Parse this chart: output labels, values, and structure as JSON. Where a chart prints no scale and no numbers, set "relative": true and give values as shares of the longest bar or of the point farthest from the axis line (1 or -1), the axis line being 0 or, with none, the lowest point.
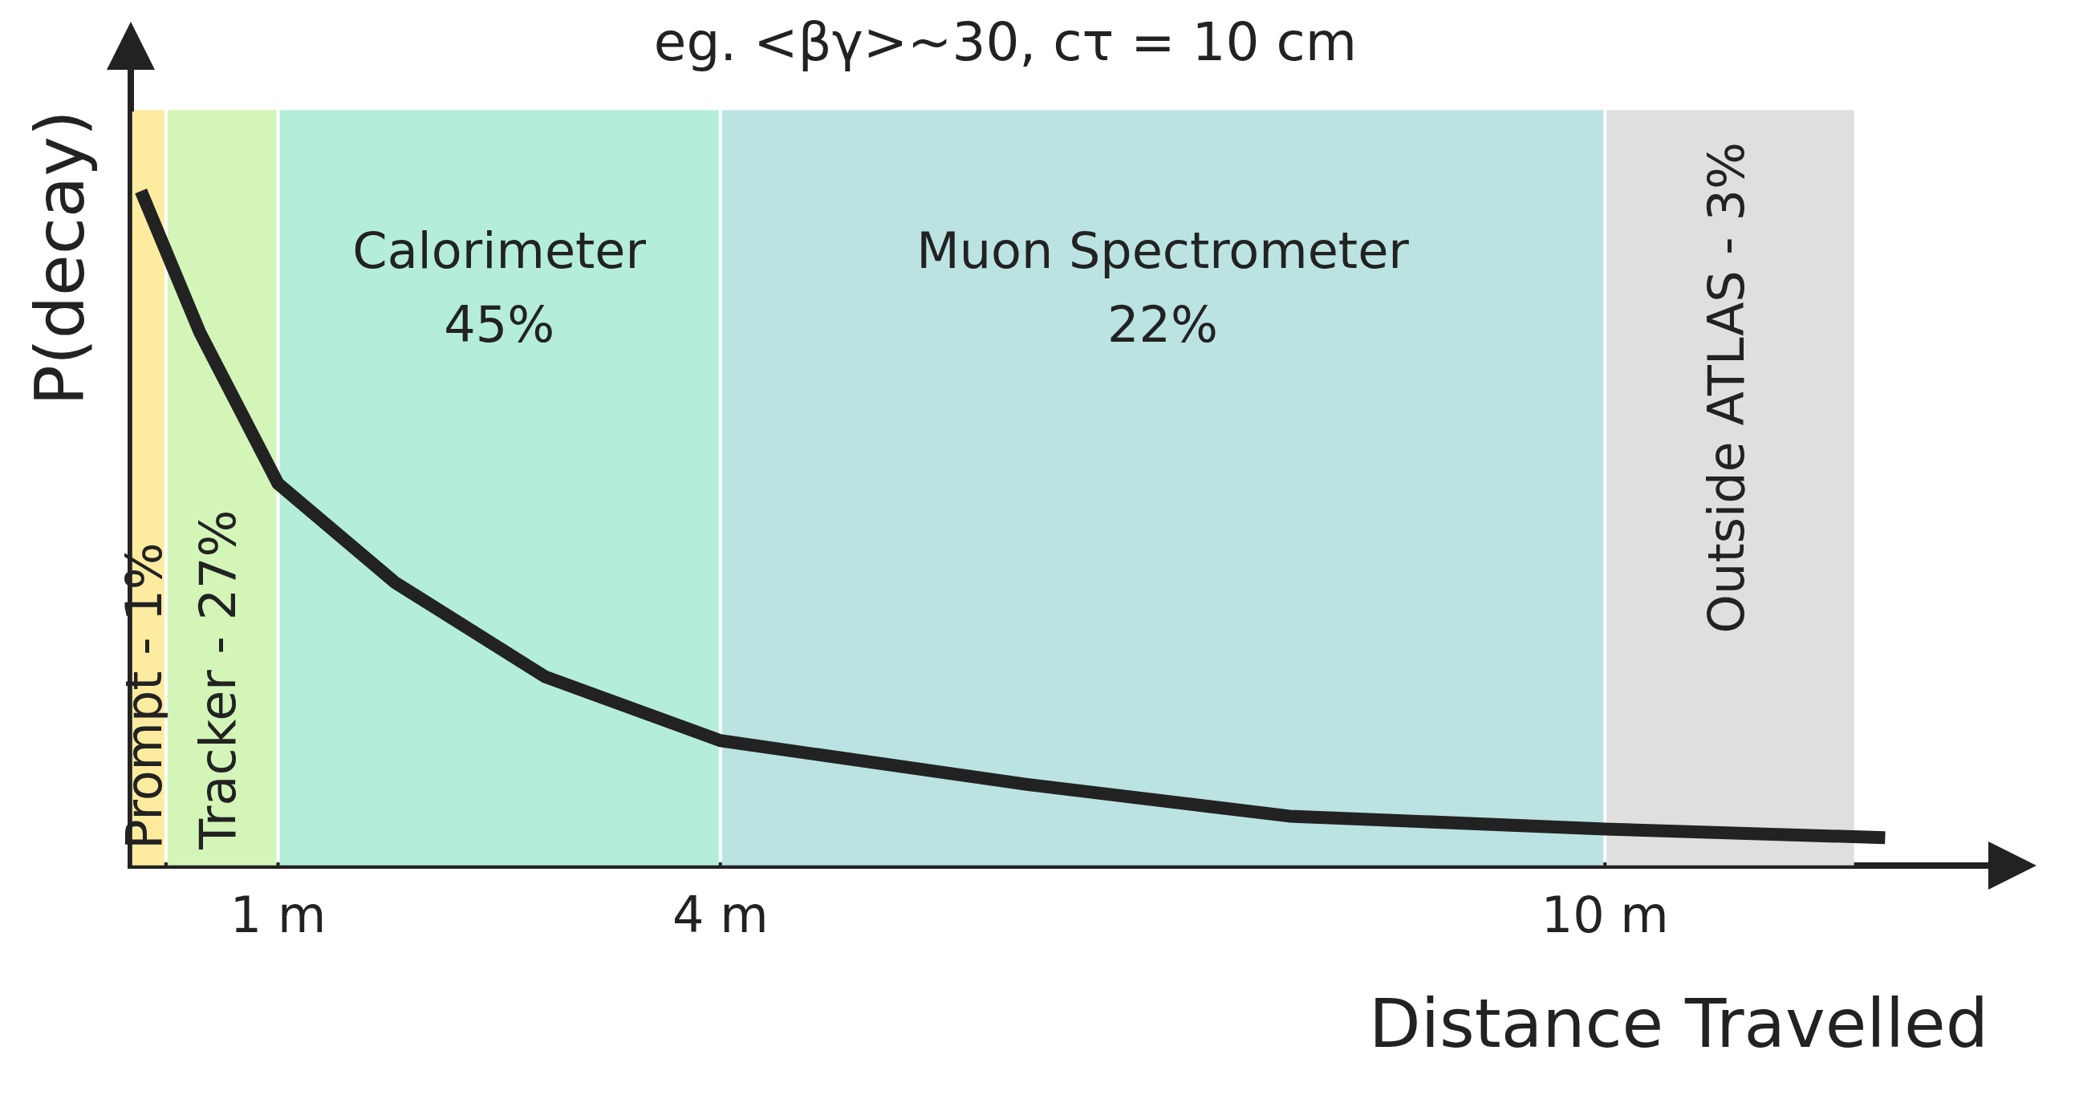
{
  "chart_data": {
    "type": "line",
    "title": "eg. <βγ>~30, cτ = 10 cm",
    "xlabel": "Distance Travelled",
    "ylabel": "P(decay)",
    "relative": true,
    "legend": false,
    "grid": false,
    "marker": "none",
    "line_style": "solid",
    "xlim": [
      0,
      12.6
    ],
    "xticks": [
      {
        "value": 1,
        "label": "1 m"
      },
      {
        "value": 4,
        "label": "4 m"
      },
      {
        "value": 10,
        "label": "10 m"
      }
    ],
    "series": [
      {
        "color": "#222222",
        "x": [
          0.07,
          0.47,
          1,
          1.79,
          2.81,
          4,
          6.08,
          7.86,
          10,
          11.9
        ],
        "values": [
          1,
          0.79,
          0.566,
          0.42,
          0.28,
          0.185,
          0.12,
          0.073,
          0.054,
          0.041
        ]
      }
    ],
    "bands": [
      {
        "axis": "x",
        "from": 0,
        "to": 0.24,
        "label": "Prompt - 1%",
        "color": "#fdeca0"
      },
      {
        "axis": "x",
        "from": 0.24,
        "to": 1,
        "label": "Tracker - 27%",
        "color": "#d3f5b8"
      },
      {
        "axis": "x",
        "from": 1,
        "to": 4,
        "label": "Calorimeter\n45%",
        "color": "#b4eed9"
      },
      {
        "axis": "x",
        "from": 4,
        "to": 10,
        "label": "Muon Spectrometer\n22%",
        "color": "#bbe3e2"
      },
      {
        "axis": "x",
        "from": 10,
        "to": 11.7,
        "label": "Outside ATLAS - 3%",
        "color": "#dfdfdf"
      }
    ]
  }
}
